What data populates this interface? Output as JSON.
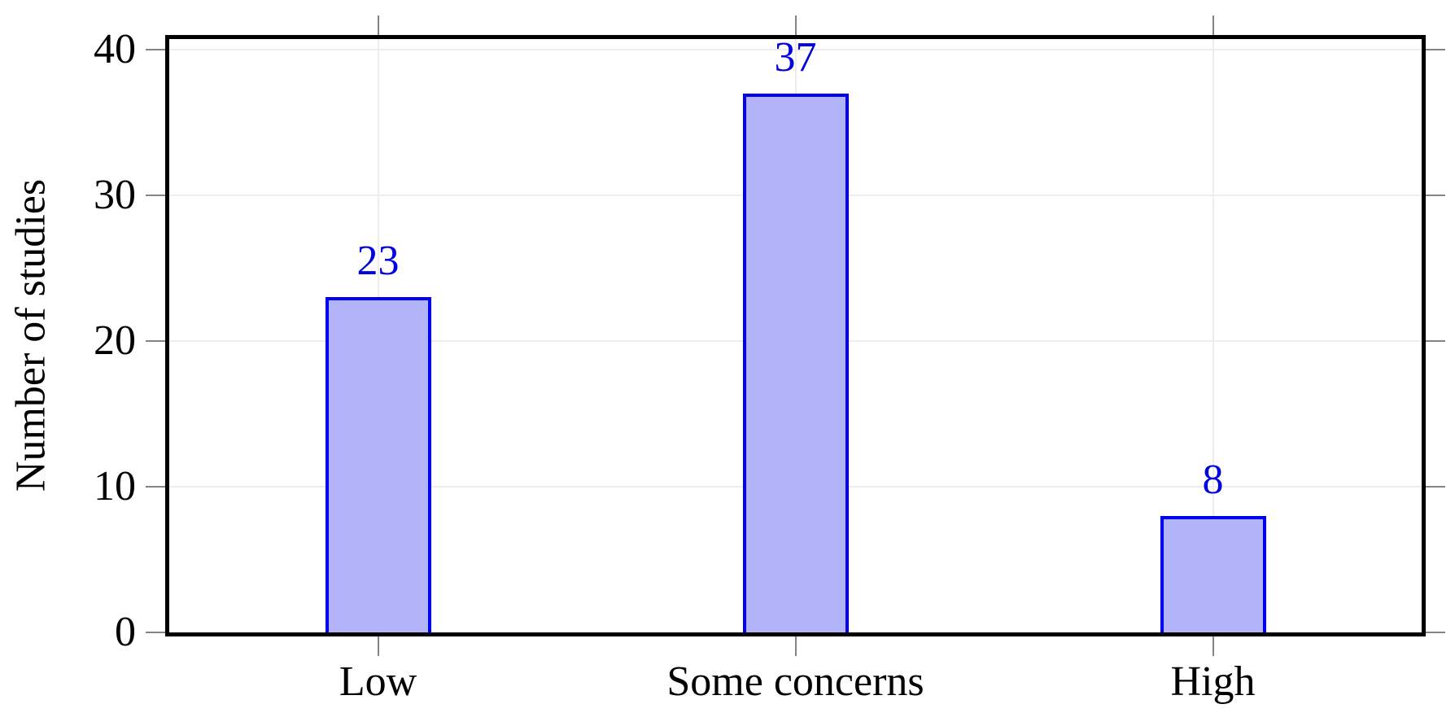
{
  "chart_data": {
    "type": "bar",
    "categories": [
      "Low",
      "Some concerns",
      "High"
    ],
    "values": [
      23,
      37,
      8
    ],
    "value_labels": [
      "23",
      "37",
      "8"
    ],
    "title": "",
    "xlabel": "",
    "ylabel": "Number of studies",
    "yticks": [
      0,
      10,
      20,
      30,
      40
    ],
    "ytick_labels": [
      "0",
      "10",
      "20",
      "30",
      "40"
    ],
    "ylim": [
      0,
      40.73
    ],
    "grid": true,
    "legend": null,
    "colors": {
      "bar_fill": "#b3b3fa",
      "bar_border": "#0000ee",
      "value_label": "#0000e0",
      "axis_frame": "#000000",
      "gridline": "#ededed",
      "tick_mark": "#848484",
      "text": "#000000"
    }
  }
}
